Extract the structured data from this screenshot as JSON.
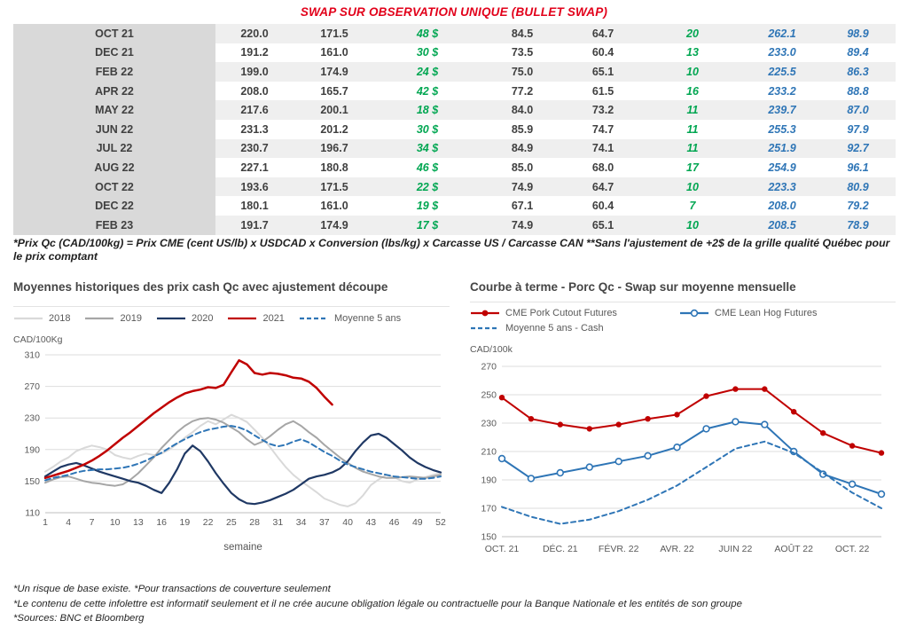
{
  "title": {
    "text": "SWAP SUR OBSERVATION UNIQUE (BULLET SWAP)",
    "color": "#e2001a"
  },
  "table": {
    "month_col_bg": "#d9d9d9",
    "stripe_bg": "#efefef",
    "value_color": "#404040",
    "green": "#00a651",
    "blue": "#2e75b6",
    "rows": [
      {
        "month": "OCT 21",
        "c1": "220.0",
        "c2": "171.5",
        "c3": "48 $",
        "c4": "84.5",
        "c5": "64.7",
        "c6": "20",
        "c7": "262.1",
        "c8": "98.9"
      },
      {
        "month": "DEC 21",
        "c1": "191.2",
        "c2": "161.0",
        "c3": "30 $",
        "c4": "73.5",
        "c5": "60.4",
        "c6": "13",
        "c7": "233.0",
        "c8": "89.4"
      },
      {
        "month": "FEB 22",
        "c1": "199.0",
        "c2": "174.9",
        "c3": "24 $",
        "c4": "75.0",
        "c5": "65.1",
        "c6": "10",
        "c7": "225.5",
        "c8": "86.3"
      },
      {
        "month": "APR 22",
        "c1": "208.0",
        "c2": "165.7",
        "c3": "42 $",
        "c4": "77.2",
        "c5": "61.5",
        "c6": "16",
        "c7": "233.2",
        "c8": "88.8"
      },
      {
        "month": "MAY 22",
        "c1": "217.6",
        "c2": "200.1",
        "c3": "18 $",
        "c4": "84.0",
        "c5": "73.2",
        "c6": "11",
        "c7": "239.7",
        "c8": "87.0"
      },
      {
        "month": "JUN 22",
        "c1": "231.3",
        "c2": "201.2",
        "c3": "30 $",
        "c4": "85.9",
        "c5": "74.7",
        "c6": "11",
        "c7": "255.3",
        "c8": "97.9"
      },
      {
        "month": "JUL 22",
        "c1": "230.7",
        "c2": "196.7",
        "c3": "34 $",
        "c4": "84.9",
        "c5": "74.1",
        "c6": "11",
        "c7": "251.9",
        "c8": "92.7"
      },
      {
        "month": "AUG 22",
        "c1": "227.1",
        "c2": "180.8",
        "c3": "46 $",
        "c4": "85.0",
        "c5": "68.0",
        "c6": "17",
        "c7": "254.9",
        "c8": "96.1"
      },
      {
        "month": "OCT 22",
        "c1": "193.6",
        "c2": "171.5",
        "c3": "22 $",
        "c4": "74.9",
        "c5": "64.7",
        "c6": "10",
        "c7": "223.3",
        "c8": "80.9"
      },
      {
        "month": "DEC 22",
        "c1": "180.1",
        "c2": "161.0",
        "c3": "19 $",
        "c4": "67.1",
        "c5": "60.4",
        "c6": "7",
        "c7": "208.0",
        "c8": "79.2"
      },
      {
        "month": "FEB 23",
        "c1": "191.7",
        "c2": "174.9",
        "c3": "17 $",
        "c4": "74.9",
        "c5": "65.1",
        "c6": "10",
        "c7": "208.5",
        "c8": "78.9"
      }
    ]
  },
  "table_footnote": "*Prix Qc (CAD/100kg) = Prix CME (cent US/lb) x USDCAD x Conversion (lbs/kg) x Carcasse US / Carcasse CAN **Sans l'ajustement de +2$ de la grille qualité Québec pour le prix comptant",
  "chart_data": [
    {
      "type": "line",
      "title": "Moyennes historiques des prix cash Qc avec ajustement découpe",
      "ylabel": "CAD/100Kg",
      "xlabel": "semaine",
      "xlim": [
        1,
        52
      ],
      "ylim": [
        110,
        310
      ],
      "yticks": [
        110,
        150,
        190,
        230,
        270,
        310
      ],
      "xticks": [
        1,
        4,
        7,
        10,
        13,
        16,
        19,
        22,
        25,
        28,
        31,
        34,
        37,
        40,
        43,
        46,
        49,
        52
      ],
      "grid": true,
      "legend_position": "top",
      "series": [
        {
          "name": "2018",
          "color": "#d9d9d9",
          "width": 2,
          "values": [
            162,
            168,
            175,
            180,
            188,
            192,
            195,
            193,
            190,
            183,
            180,
            178,
            182,
            185,
            183,
            185,
            190,
            197,
            205,
            212,
            220,
            226,
            222,
            228,
            234,
            230,
            225,
            215,
            205,
            193,
            180,
            168,
            158,
            150,
            143,
            136,
            128,
            124,
            120,
            118,
            122,
            132,
            145,
            152,
            158,
            155,
            150,
            148,
            152,
            155,
            158,
            160
          ]
        },
        {
          "name": "2019",
          "color": "#a6a6a6",
          "width": 2,
          "values": [
            148,
            152,
            155,
            156,
            153,
            150,
            148,
            147,
            145,
            144,
            146,
            152,
            160,
            170,
            180,
            192,
            202,
            212,
            220,
            226,
            229,
            230,
            228,
            224,
            218,
            212,
            203,
            196,
            200,
            207,
            215,
            222,
            226,
            220,
            212,
            205,
            196,
            188,
            180,
            173,
            167,
            162,
            159,
            156,
            154,
            154,
            155,
            156,
            155,
            154,
            156,
            158
          ]
        },
        {
          "name": "2020",
          "color": "#1f3864",
          "width": 2.2,
          "values": [
            156,
            162,
            168,
            171,
            173,
            170,
            166,
            162,
            159,
            156,
            153,
            150,
            148,
            144,
            139,
            135,
            148,
            165,
            185,
            195,
            188,
            175,
            160,
            147,
            135,
            127,
            122,
            121,
            123,
            126,
            130,
            134,
            139,
            146,
            153,
            156,
            158,
            161,
            166,
            175,
            188,
            199,
            208,
            210,
            205,
            197,
            189,
            180,
            173,
            168,
            164,
            161
          ]
        },
        {
          "name": "2021",
          "color": "#c00000",
          "width": 2.5,
          "values": [
            154,
            157,
            160,
            163,
            167,
            171,
            176,
            182,
            189,
            197,
            205,
            212,
            220,
            228,
            236,
            243,
            250,
            256,
            261,
            264,
            266,
            269,
            268,
            272,
            288,
            303,
            298,
            287,
            285,
            287,
            286,
            284,
            281,
            280,
            276,
            268,
            257,
            247,
            null,
            null,
            null,
            null,
            null,
            null,
            null,
            null,
            null,
            null,
            null,
            null,
            null,
            null
          ]
        },
        {
          "name": "Moyenne 5 ans",
          "color": "#2e75b6",
          "width": 2,
          "dash": "6,4",
          "values": [
            151,
            154,
            156,
            158,
            161,
            163,
            164,
            165,
            165,
            166,
            167,
            169,
            172,
            176,
            181,
            186,
            192,
            198,
            203,
            208,
            212,
            215,
            217,
            219,
            220,
            218,
            214,
            208,
            202,
            197,
            194,
            196,
            200,
            203,
            199,
            193,
            187,
            182,
            176,
            171,
            168,
            165,
            162,
            160,
            158,
            156,
            155,
            154,
            153,
            153,
            154,
            156
          ]
        }
      ]
    },
    {
      "type": "line",
      "title": "Courbe à terme - Porc Qc - Swap sur moyenne mensuelle",
      "ylabel": "CAD/100k",
      "categories": [
        "OCT. 21",
        "NOV. 21",
        "DÉC. 21",
        "JANV. 22",
        "FÉVR. 22",
        "MARS 22",
        "AVR. 22",
        "MAI 22",
        "JUIN 22",
        "JUIL. 22",
        "AOÛT 22",
        "SEPT. 22",
        "OCT. 22",
        "NOV. 22"
      ],
      "xtick_labels": [
        "OCT. 21",
        "DÉC. 21",
        "FÉVR. 22",
        "AVR. 22",
        "JUIN 22",
        "AOÛT 22",
        "OCT. 22"
      ],
      "xtick_every": 2,
      "ylim": [
        150,
        270
      ],
      "yticks": [
        150,
        170,
        190,
        210,
        230,
        250,
        270
      ],
      "grid": true,
      "legend_position": "top",
      "series": [
        {
          "name": "CME Pork Cutout Futures",
          "color": "#c00000",
          "width": 2,
          "marker": "filled",
          "values": [
            248,
            233,
            229,
            226,
            229,
            233,
            236,
            249,
            254,
            254,
            238,
            223,
            214,
            209
          ]
        },
        {
          "name": "CME Lean Hog Futures",
          "color": "#2e75b6",
          "width": 2,
          "marker": "open",
          "values": [
            205,
            191,
            195,
            199,
            203,
            207,
            213,
            226,
            231,
            229,
            210,
            194,
            187,
            180
          ]
        },
        {
          "name": "Moyenne 5 ans - Cash",
          "color": "#2e75b6",
          "width": 2,
          "dash": "5,4",
          "values": [
            171,
            164,
            159,
            162,
            168,
            176,
            186,
            199,
            212,
            217,
            209,
            195,
            181,
            170
          ]
        }
      ]
    }
  ],
  "footnotes": [
    "*Un risque de base existe. *Pour transactions de couverture seulement",
    "*Le contenu de cette infolettre est informatif seulement et il ne crée aucune obligation légale ou contractuelle pour la Banque Nationale et les entités de son groupe",
    "*Sources: BNC et Bloomberg"
  ]
}
